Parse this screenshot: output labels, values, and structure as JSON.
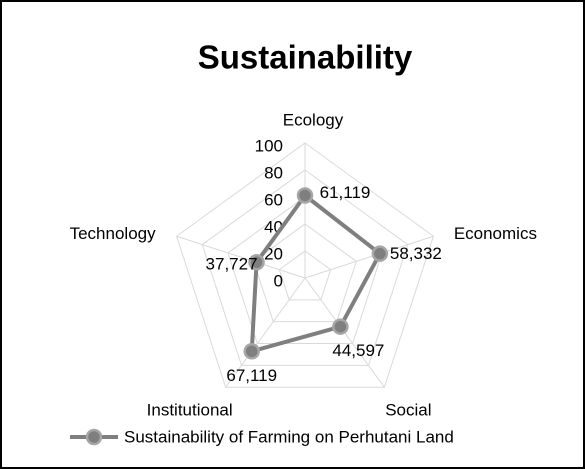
{
  "chart_data": {
    "type": "radar",
    "title": "Sustainability",
    "categories": [
      "Ecology",
      "Economics",
      "Social",
      "Institutional",
      "Technology"
    ],
    "series": [
      {
        "name": "Sustainability of Farming on Perhutani Land",
        "color": "#7f7f7f",
        "values": [
          61.119,
          58.332,
          44.597,
          67.119,
          37.727
        ],
        "value_labels": [
          "61,119",
          "58,332",
          "44,597",
          "67,119",
          "37,727"
        ]
      }
    ],
    "ylim": [
      0,
      100
    ],
    "yticks": [
      0,
      20,
      40,
      60,
      80,
      100
    ],
    "grid": true,
    "legend": "bottom"
  }
}
